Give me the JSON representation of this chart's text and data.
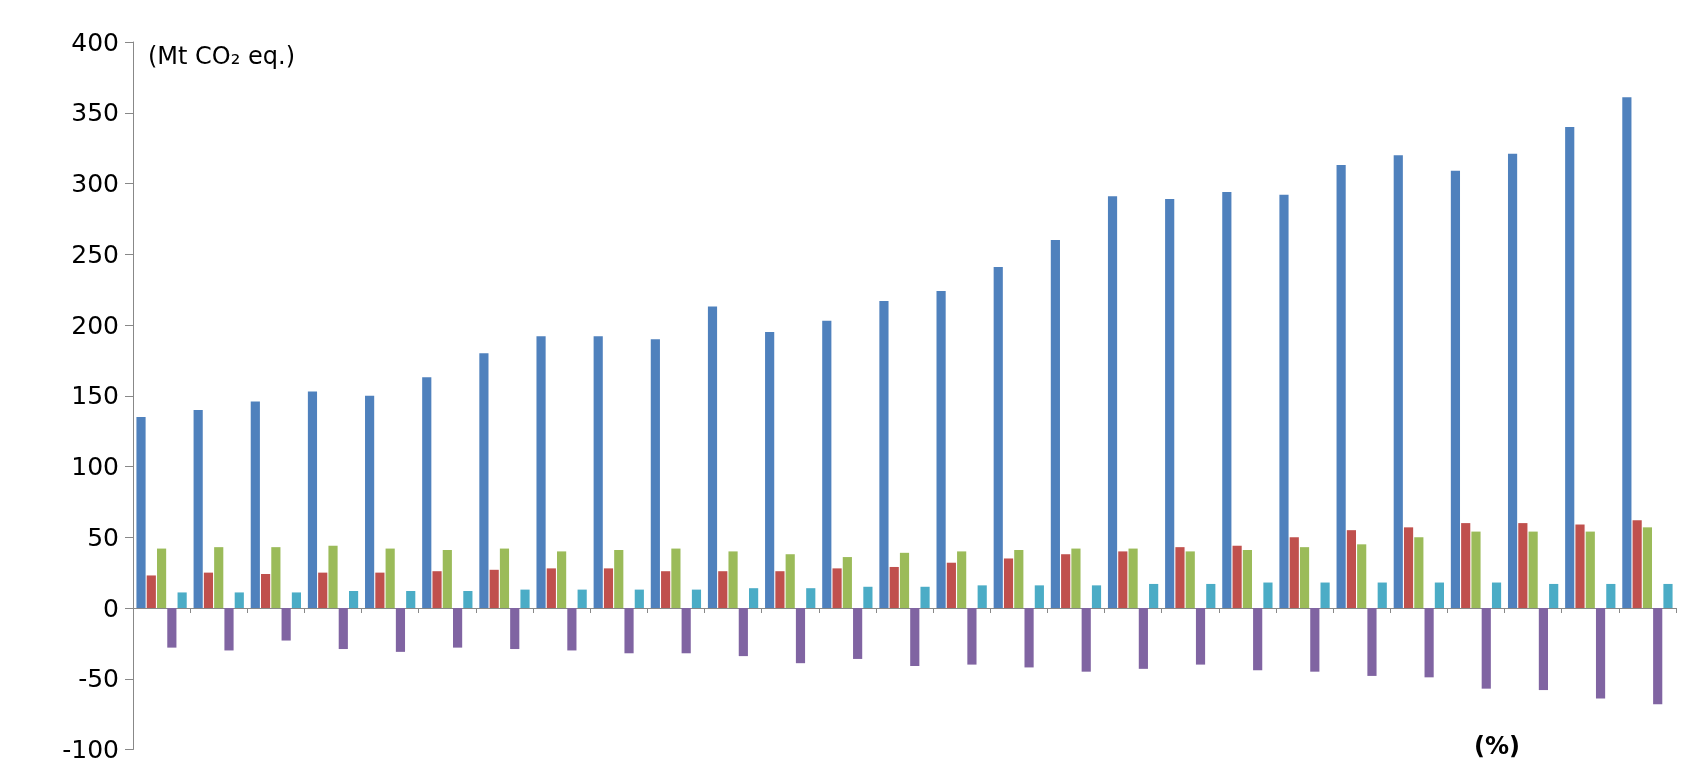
{
  "chart_data": {
    "type": "bar",
    "ylabel": "(Mt CO₂ eq.)",
    "annotations": [
      "(%)"
    ],
    "categories": [
      null,
      null,
      null,
      null,
      null,
      null,
      null,
      null,
      null,
      null,
      null,
      null,
      null,
      null,
      null,
      null,
      null,
      null,
      null,
      null,
      null,
      null,
      null,
      null,
      null,
      null,
      null
    ],
    "series": [
      {
        "color": "#4f81bd",
        "values": [
          135,
          140,
          146,
          153,
          150,
          163,
          180,
          192,
          192,
          190,
          213,
          195,
          203,
          217,
          224,
          241,
          260,
          291,
          289,
          294,
          292,
          313,
          320,
          309,
          321,
          340,
          361
        ]
      },
      {
        "color": "#c0504d",
        "values": [
          23,
          25,
          24,
          25,
          25,
          26,
          27,
          28,
          28,
          26,
          26,
          26,
          28,
          29,
          32,
          35,
          38,
          40,
          43,
          44,
          50,
          55,
          57,
          60,
          60,
          59,
          62
        ]
      },
      {
        "color": "#9bbb59",
        "values": [
          42,
          43,
          43,
          44,
          42,
          41,
          42,
          40,
          41,
          42,
          40,
          38,
          36,
          39,
          40,
          41,
          42,
          42,
          40,
          41,
          43,
          45,
          50,
          54,
          54,
          54,
          57
        ]
      },
      {
        "color": "#8064a2",
        "values": [
          -28,
          -30,
          -23,
          -29,
          -31,
          -28,
          -29,
          -30,
          -32,
          -32,
          -34,
          -39,
          -36,
          -41,
          -40,
          -42,
          -45,
          -43,
          -40,
          -44,
          -45,
          -48,
          -49,
          -57,
          -58,
          -64,
          -68
        ]
      },
      {
        "color": "#4bacc6",
        "values": [
          11,
          11,
          11,
          12,
          12,
          12,
          13,
          13,
          13,
          13,
          14,
          14,
          15,
          15,
          16,
          16,
          16,
          17,
          17,
          18,
          18,
          18,
          18,
          18,
          17,
          17,
          17
        ]
      }
    ],
    "ylim": [
      -100,
      400
    ],
    "yticks": [
      -100,
      -50,
      0,
      50,
      100,
      150,
      200,
      250,
      300,
      350,
      400
    ]
  }
}
